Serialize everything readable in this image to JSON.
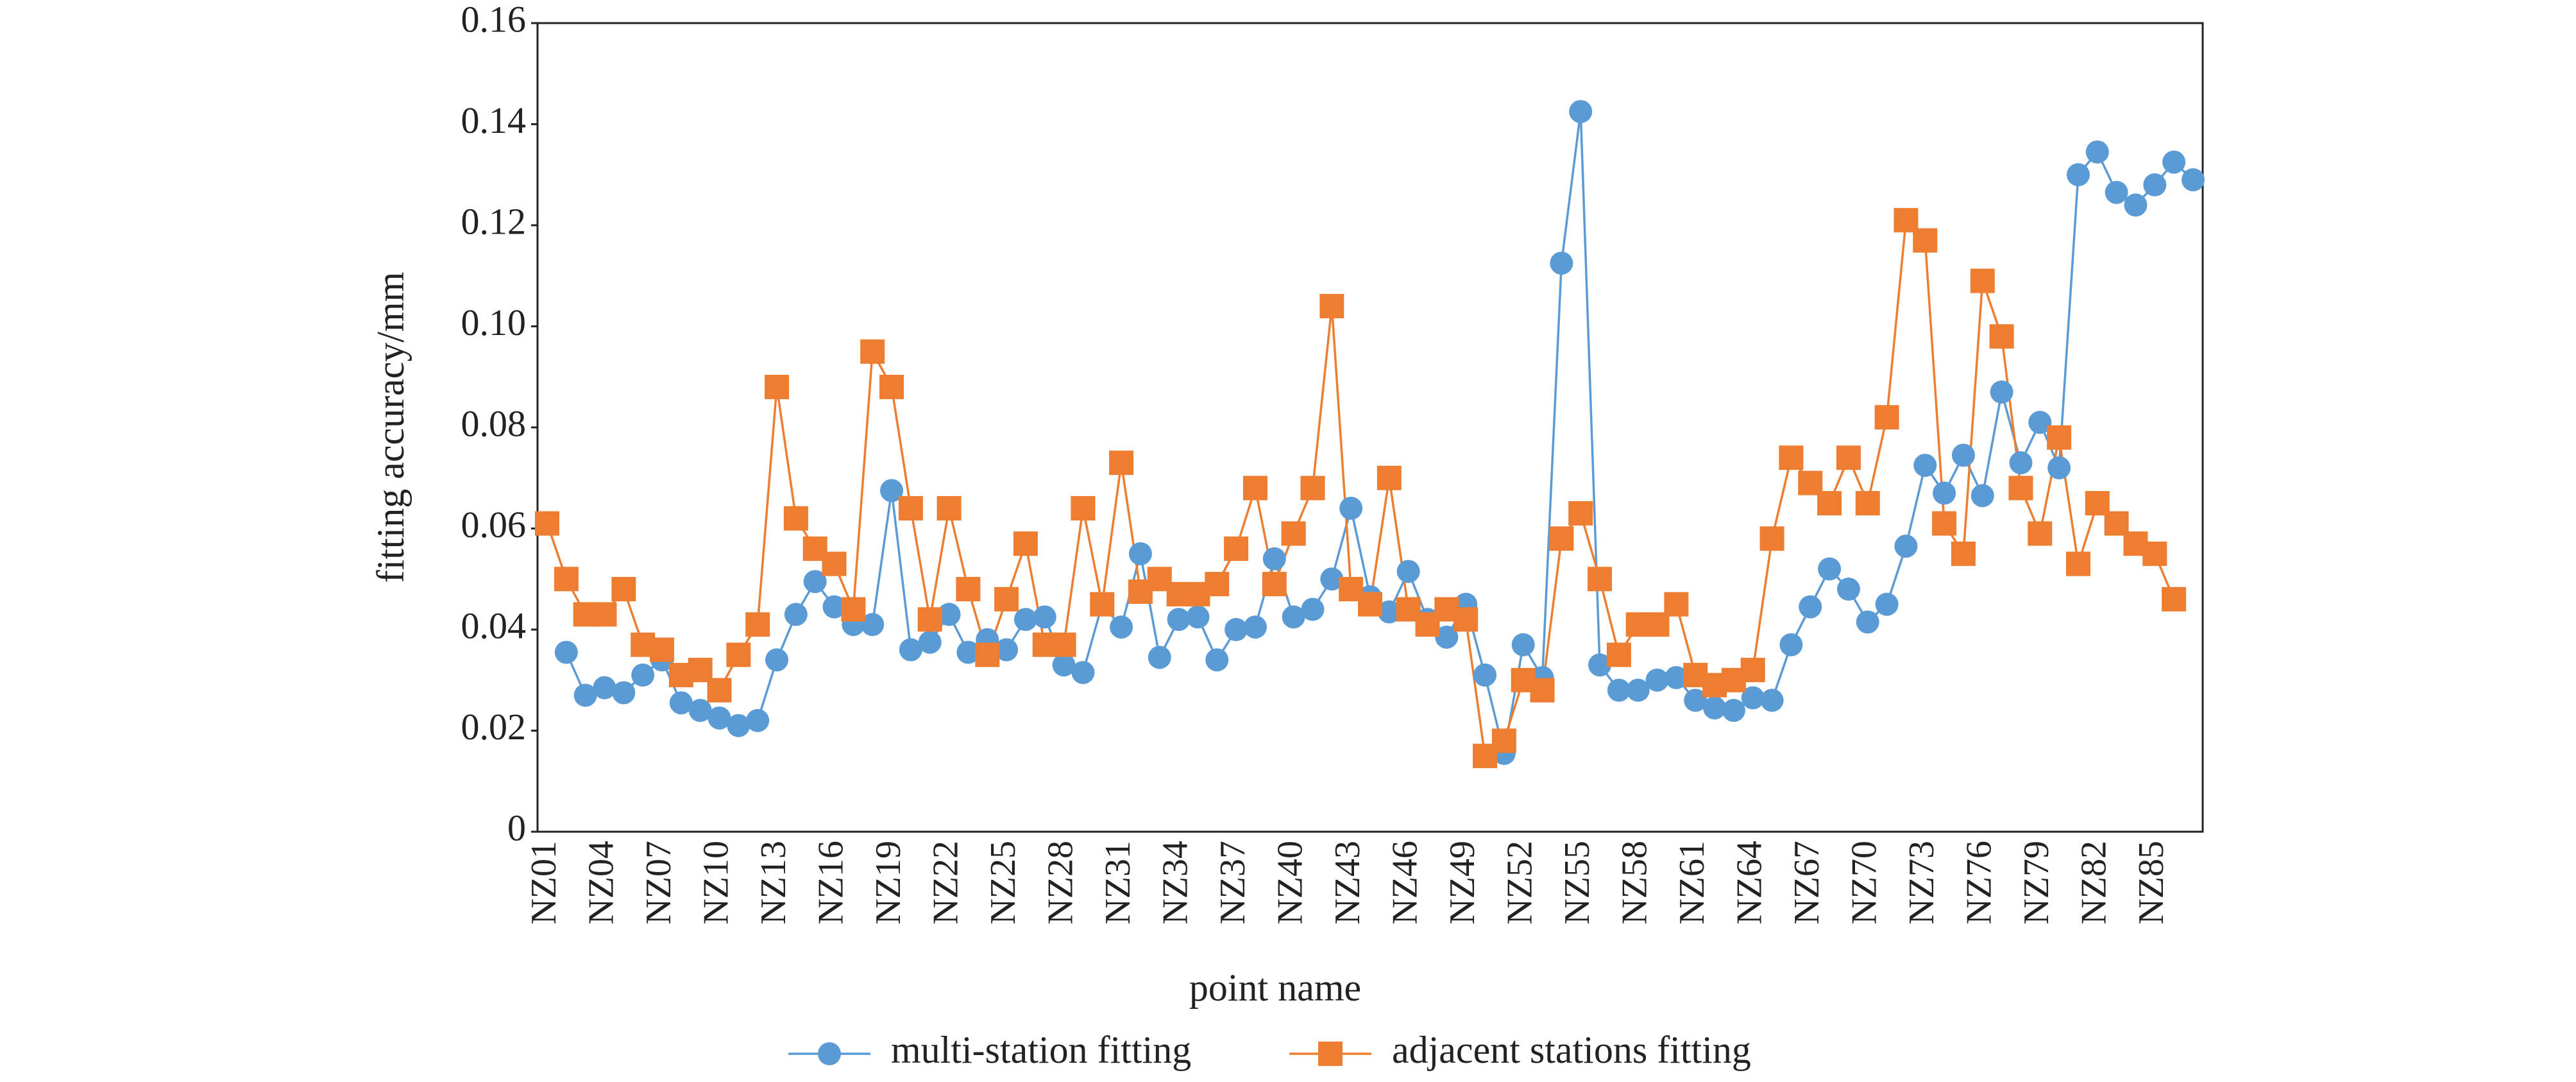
{
  "chart_data": {
    "type": "line",
    "x_label": "point name",
    "y_label": "fitting accuracy/mm",
    "categories": [
      "NZ01",
      null,
      null,
      "NZ04",
      null,
      null,
      "NZ07",
      null,
      null,
      "NZ10",
      null,
      null,
      "NZ13",
      null,
      null,
      "NZ16",
      null,
      null,
      "NZ19",
      null,
      null,
      "NZ22",
      null,
      null,
      "NZ25",
      null,
      null,
      "NZ28",
      null,
      null,
      "NZ31",
      null,
      null,
      "NZ34",
      null,
      null,
      "NZ37",
      null,
      null,
      "NZ40",
      null,
      null,
      "NZ43",
      null,
      null,
      "NZ46",
      null,
      null,
      "NZ49",
      null,
      null,
      "NZ52",
      null,
      null,
      "NZ55",
      null,
      null,
      "NZ58",
      null,
      null,
      "NZ61",
      null,
      null,
      "NZ64",
      null,
      null,
      "NZ67",
      null,
      null,
      "NZ70",
      null,
      null,
      "NZ73",
      null,
      null,
      "NZ76",
      null,
      null,
      "NZ79",
      null,
      null,
      "NZ82",
      null,
      null,
      "NZ85",
      null,
      null
    ],
    "series": [
      {
        "name": "multi-station fitting",
        "color": "#5b9bd5",
        "marker": "circle",
        "values": [
          null,
          0.0355,
          0.027,
          0.0285,
          0.0275,
          0.031,
          0.034,
          0.0255,
          0.024,
          0.0225,
          0.021,
          0.022,
          0.034,
          0.043,
          0.0495,
          0.0445,
          0.041,
          0.041,
          0.0675,
          0.036,
          0.0375,
          0.043,
          0.0355,
          0.038,
          0.036,
          0.042,
          0.0425,
          0.033,
          0.0315,
          0.045,
          0.0405,
          0.055,
          0.0345,
          0.042,
          0.0425,
          0.034,
          0.04,
          0.0405,
          0.054,
          0.0425,
          0.044,
          0.05,
          0.064,
          0.0465,
          0.0435,
          0.0515,
          0.042,
          0.0385,
          0.045,
          0.031,
          0.0155,
          0.037,
          0.0305,
          0.1125,
          0.1425,
          0.033,
          0.028,
          0.028,
          0.03,
          0.0305,
          0.026,
          0.0245,
          0.024,
          0.0265,
          0.026,
          0.037,
          0.0445,
          0.052,
          0.048,
          0.0415,
          0.045,
          0.0565,
          0.0725,
          0.067,
          0.0745,
          0.0665,
          0.087,
          0.073,
          0.081,
          0.072,
          0.13,
          0.1345,
          0.1265,
          0.124,
          0.128,
          0.1325,
          0.129
        ]
      },
      {
        "name": "adjacent stations fitting",
        "color": "#ed7d31",
        "marker": "square",
        "values": [
          0.061,
          0.05,
          0.043,
          0.043,
          0.048,
          0.037,
          0.036,
          0.031,
          0.032,
          0.028,
          0.035,
          0.041,
          0.088,
          0.062,
          0.056,
          0.053,
          0.044,
          0.095,
          0.088,
          0.064,
          0.042,
          0.064,
          0.048,
          0.035,
          0.046,
          0.057,
          0.037,
          0.037,
          0.064,
          0.045,
          0.073,
          0.0475,
          0.05,
          0.047,
          0.047,
          0.049,
          0.056,
          0.068,
          0.049,
          0.059,
          0.068,
          0.104,
          0.048,
          0.045,
          0.07,
          0.044,
          0.041,
          0.044,
          0.042,
          0.015,
          0.018,
          0.03,
          0.028,
          0.058,
          0.063,
          0.05,
          0.035,
          0.041,
          0.041,
          0.045,
          0.031,
          0.029,
          0.03,
          0.032,
          0.058,
          0.074,
          0.069,
          0.065,
          0.074,
          0.065,
          0.082,
          0.121,
          0.117,
          0.061,
          0.055,
          0.109,
          0.098,
          0.068,
          0.059,
          0.078,
          0.053,
          0.065,
          0.061,
          0.057,
          0.055,
          0.046,
          null
        ]
      }
    ],
    "ylim": [
      0,
      0.16
    ],
    "yticks": [
      0,
      0.02,
      0.04,
      0.06,
      0.08,
      {
        "value": 0.1,
        "label": "0.10"
      },
      0.12,
      0.14,
      0.16
    ],
    "grid": false,
    "legend": "bottom"
  }
}
